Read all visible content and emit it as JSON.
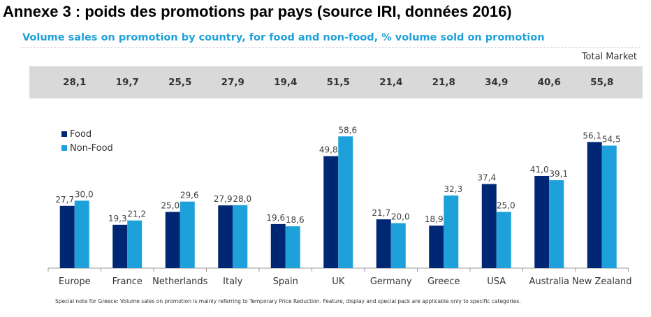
{
  "page": {
    "annexe_title": "Annexe 3 : poids des promotions par pays (source IRI, données 2016)",
    "subtitle": "Volume sales on promotion by country, for food and non-food, % volume sold on promotion",
    "total_market_label": "Total Market",
    "footnote": "Special note for Greece: Volume sales on promotion is mainly referring to Temporary Price Reduction. Feature, display and special pack are applicable only to specific categories."
  },
  "colors": {
    "food": "#002774",
    "non_food": "#1ea1da",
    "title_accent": "#1ea1da",
    "band": "#d9d9d9"
  },
  "chart_data": {
    "type": "bar",
    "title": "Volume sales on promotion by country, for food and non-food, % volume sold on promotion",
    "categories": [
      "Europe",
      "France",
      "Netherlands",
      "Italy",
      "Spain",
      "UK",
      "Germany",
      "Greece",
      "USA",
      "Australia",
      "New Zealand"
    ],
    "series": [
      {
        "name": "Food",
        "values": [
          27.7,
          19.3,
          25.0,
          27.9,
          19.6,
          49.8,
          21.7,
          18.9,
          37.4,
          41.0,
          56.1
        ],
        "labels": [
          "27,7",
          "19,3",
          "25,0",
          "27,9",
          "19,6",
          "49,8",
          "21,7",
          "18,9",
          "37,4",
          "41,0",
          "56,1"
        ]
      },
      {
        "name": "Non-Food",
        "values": [
          30.0,
          21.2,
          29.6,
          28.0,
          18.6,
          58.6,
          20.0,
          32.3,
          25.0,
          39.1,
          54.5
        ],
        "labels": [
          "30,0",
          "21,2",
          "29,6",
          "28,0",
          "18,6",
          "58,6",
          "20,0",
          "32,3",
          "25,0",
          "39,1",
          "54,5"
        ]
      }
    ],
    "total_market": {
      "label": "Total Market",
      "values": [
        28.1,
        19.7,
        25.5,
        27.9,
        19.4,
        51.5,
        21.4,
        21.8,
        34.9,
        40.6,
        55.8
      ],
      "labels": [
        "28,1",
        "19,7",
        "25,5",
        "27,9",
        "19,4",
        "51,5",
        "21,4",
        "21,8",
        "34,9",
        "40,6",
        "55,8"
      ]
    },
    "xlabel": "",
    "ylabel": "",
    "ylim": [
      0,
      60
    ],
    "grid": false,
    "legend": "top-left"
  }
}
